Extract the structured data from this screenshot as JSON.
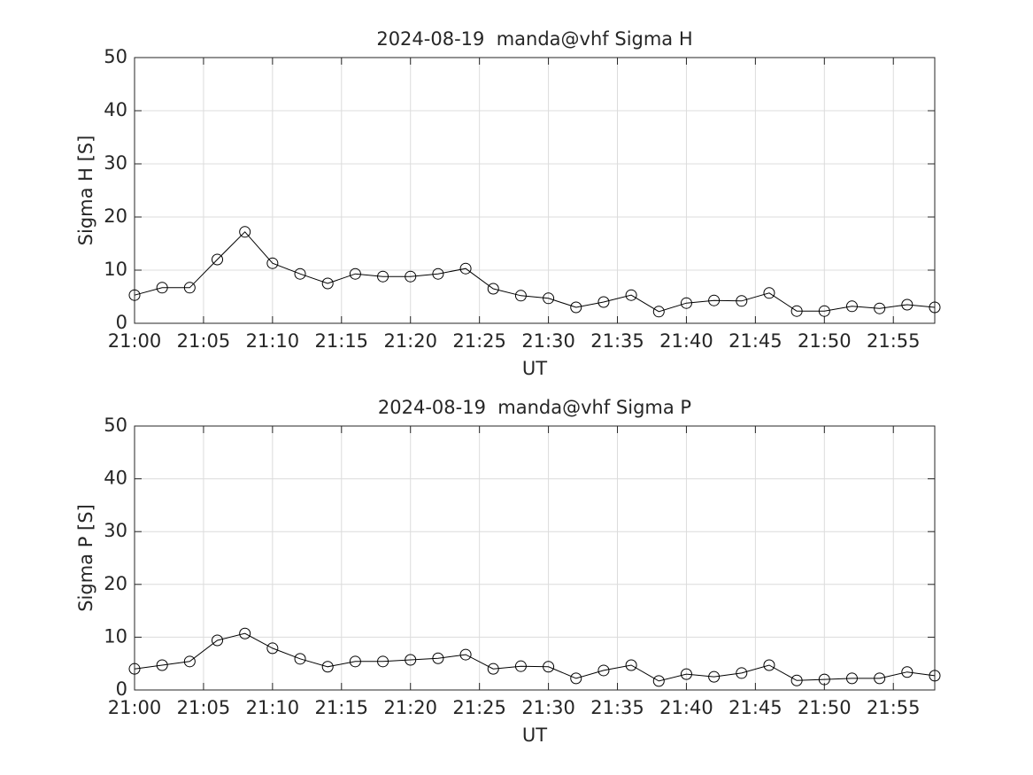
{
  "chart_data": [
    {
      "type": "line",
      "title": "2024-08-19  manda@vhf Sigma H",
      "xlabel": "UT",
      "ylabel": "Sigma H [S]",
      "x": [
        "21:00",
        "21:02",
        "21:04",
        "21:06",
        "21:08",
        "21:10",
        "21:12",
        "21:14",
        "21:16",
        "21:18",
        "21:20",
        "21:22",
        "21:24",
        "21:26",
        "21:28",
        "21:30",
        "21:32",
        "21:34",
        "21:36",
        "21:38",
        "21:40",
        "21:42",
        "21:44",
        "21:46",
        "21:48",
        "21:50",
        "21:52",
        "21:54",
        "21:56",
        "21:58"
      ],
      "values": [
        5.3,
        6.7,
        6.7,
        12,
        17.2,
        11.3,
        9.3,
        7.5,
        9.3,
        8.8,
        8.8,
        9.3,
        10.3,
        6.5,
        5.2,
        4.7,
        3,
        4,
        5.3,
        2.2,
        3.8,
        4.3,
        4.2,
        5.7,
        2.3,
        2.3,
        3.2,
        2.8,
        3.5,
        3
      ],
      "color": "#000000",
      "marker": "circle",
      "xlim": [
        "21:00",
        "21:58"
      ],
      "xticks": [
        "21:00",
        "21:05",
        "21:10",
        "21:15",
        "21:20",
        "21:25",
        "21:30",
        "21:35",
        "21:40",
        "21:45",
        "21:50",
        "21:55"
      ],
      "ylim": [
        0,
        50
      ],
      "yticks": [
        0,
        10,
        20,
        30,
        40,
        50
      ],
      "grid": true
    },
    {
      "type": "line",
      "title": "2024-08-19  manda@vhf Sigma P",
      "xlabel": "UT",
      "ylabel": "Sigma P [S]",
      "x": [
        "21:00",
        "21:02",
        "21:04",
        "21:06",
        "21:08",
        "21:10",
        "21:12",
        "21:14",
        "21:16",
        "21:18",
        "21:20",
        "21:22",
        "21:24",
        "21:26",
        "21:28",
        "21:30",
        "21:32",
        "21:34",
        "21:36",
        "21:38",
        "21:40",
        "21:42",
        "21:44",
        "21:46",
        "21:48",
        "21:50",
        "21:52",
        "21:54",
        "21:56",
        "21:58"
      ],
      "values": [
        4,
        4.7,
        5.4,
        9.4,
        10.7,
        7.9,
        5.9,
        4.4,
        5.4,
        5.4,
        5.7,
        6,
        6.7,
        4,
        4.5,
        4.4,
        2.2,
        3.7,
        4.7,
        1.7,
        3,
        2.5,
        3.2,
        4.7,
        1.8,
        2,
        2.2,
        2.2,
        3.4,
        2.7
      ],
      "color": "#000000",
      "marker": "circle",
      "xlim": [
        "21:00",
        "21:58"
      ],
      "xticks": [
        "21:00",
        "21:05",
        "21:10",
        "21:15",
        "21:20",
        "21:25",
        "21:30",
        "21:35",
        "21:40",
        "21:45",
        "21:50",
        "21:55"
      ],
      "ylim": [
        0,
        50
      ],
      "yticks": [
        0,
        10,
        20,
        30,
        40,
        50
      ],
      "grid": true
    }
  ]
}
